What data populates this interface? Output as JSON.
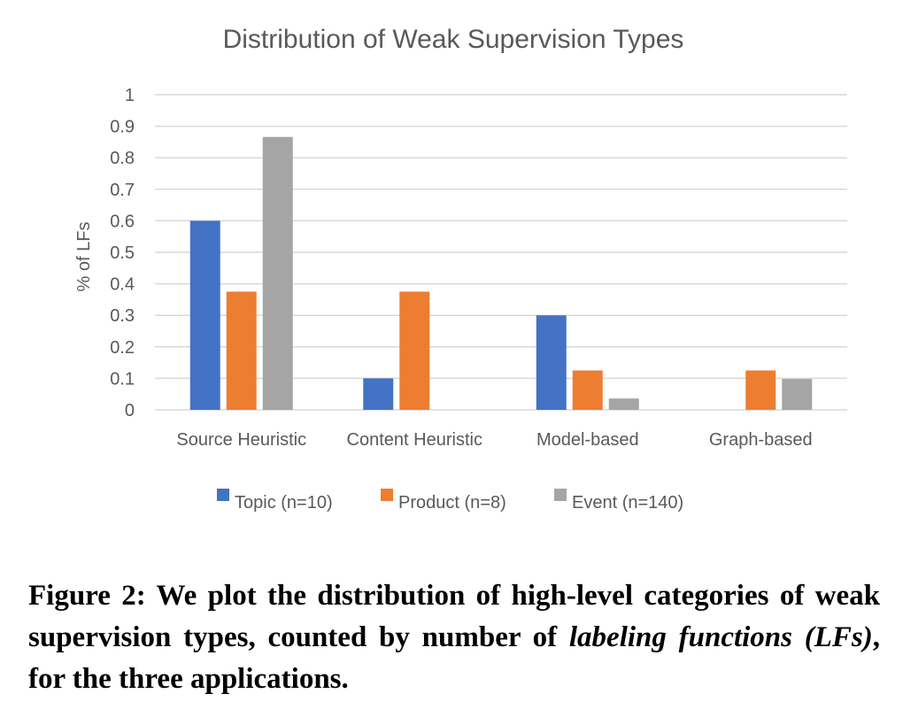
{
  "chart_data": {
    "type": "bar",
    "title": "Distribution of Weak Supervision Types",
    "ylabel": "% of LFs",
    "xlabel": "",
    "ylim": [
      0,
      1
    ],
    "yticks": [
      "0",
      "0.1",
      "0.2",
      "0.3",
      "0.4",
      "0.5",
      "0.6",
      "0.7",
      "0.8",
      "0.9",
      "1"
    ],
    "categories": [
      "Source Heuristic",
      "Content Heuristic",
      "Model-based",
      "Graph-based"
    ],
    "series": [
      {
        "name": "Topic (n=10)",
        "color": "#4472c4",
        "values": [
          0.6,
          0.1,
          0.3,
          0
        ]
      },
      {
        "name": "Product (n=8)",
        "color": "#ed7d31",
        "values": [
          0.375,
          0.375,
          0.125,
          0.125
        ]
      },
      {
        "name": "Event (n=140)",
        "color": "#a5a5a5",
        "values": [
          0.866,
          0,
          0.036,
          0.098
        ]
      }
    ],
    "grid": true,
    "legend": "bottom"
  },
  "caption": {
    "part1": "Figure 2: We plot the distribution of high-level categories of weak supervision types, counted by number of ",
    "italic": "labeling functions (LFs)",
    "part2": ", for the three applications."
  }
}
